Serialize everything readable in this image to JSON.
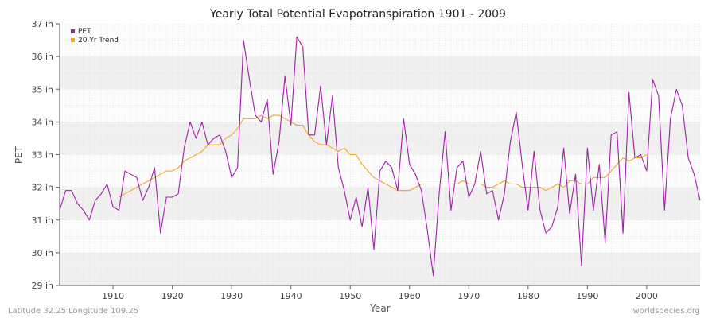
{
  "chart_data": {
    "type": "line",
    "title": "Yearly Total Potential Evapotranspiration 1901 - 2009",
    "xlabel": "Year",
    "ylabel": "PET",
    "xlim": [
      1901,
      2009
    ],
    "ylim": [
      29,
      37
    ],
    "y_unit": "in",
    "x_ticks": [
      1910,
      1920,
      1930,
      1940,
      1950,
      1960,
      1970,
      1980,
      1990,
      2000
    ],
    "y_ticks": [
      29,
      30,
      31,
      32,
      33,
      34,
      35,
      36,
      37
    ],
    "y_tick_labels": [
      "29 in",
      "30 in",
      "31 in",
      "32 in",
      "33 in",
      "34 in",
      "35 in",
      "36 in",
      "37 in"
    ],
    "grid": true,
    "legend_position": "top-left",
    "series": [
      {
        "name": "PET",
        "color": "#a020a8",
        "x": [
          1901,
          1902,
          1903,
          1904,
          1905,
          1906,
          1907,
          1908,
          1909,
          1910,
          1911,
          1912,
          1913,
          1914,
          1915,
          1916,
          1917,
          1918,
          1919,
          1920,
          1921,
          1922,
          1923,
          1924,
          1925,
          1926,
          1927,
          1928,
          1929,
          1930,
          1931,
          1932,
          1933,
          1934,
          1935,
          1936,
          1937,
          1938,
          1939,
          1940,
          1941,
          1942,
          1943,
          1944,
          1945,
          1946,
          1947,
          1948,
          1949,
          1950,
          1951,
          1952,
          1953,
          1954,
          1955,
          1956,
          1957,
          1958,
          1959,
          1960,
          1961,
          1962,
          1963,
          1964,
          1965,
          1966,
          1967,
          1968,
          1969,
          1970,
          1971,
          1972,
          1973,
          1974,
          1975,
          1976,
          1977,
          1978,
          1979,
          1980,
          1981,
          1982,
          1983,
          1984,
          1985,
          1986,
          1987,
          1988,
          1989,
          1990,
          1991,
          1992,
          1993,
          1994,
          1995,
          1996,
          1997,
          1998,
          1999,
          2000,
          2001,
          2002,
          2003,
          2004,
          2005,
          2006,
          2007,
          2008,
          2009
        ],
        "values": [
          31.3,
          31.9,
          31.9,
          31.5,
          31.3,
          31.0,
          31.6,
          31.8,
          32.1,
          31.4,
          31.3,
          32.5,
          32.4,
          32.3,
          31.6,
          32.0,
          32.6,
          30.6,
          31.7,
          31.7,
          31.8,
          33.2,
          34.0,
          33.5,
          34.0,
          33.3,
          33.5,
          33.6,
          33.1,
          32.3,
          32.6,
          36.5,
          35.3,
          34.2,
          34.0,
          34.7,
          32.4,
          33.4,
          35.4,
          33.9,
          36.6,
          36.3,
          33.6,
          33.6,
          35.1,
          33.3,
          34.8,
          32.6,
          31.9,
          31.0,
          31.7,
          30.8,
          32.0,
          30.1,
          32.5,
          32.8,
          32.6,
          31.9,
          34.1,
          32.7,
          32.4,
          31.9,
          30.7,
          29.3,
          31.8,
          33.7,
          31.3,
          32.6,
          32.8,
          31.7,
          32.1,
          33.1,
          31.8,
          31.9,
          31.0,
          31.8,
          33.4,
          34.3,
          32.7,
          31.3,
          33.1,
          31.3,
          30.6,
          30.8,
          31.4,
          33.2,
          31.2,
          32.4,
          29.6,
          33.2,
          31.3,
          32.7,
          30.3,
          33.6,
          33.7,
          30.6,
          34.9,
          32.9,
          33.0,
          32.5,
          35.3,
          34.8,
          31.3,
          34.1,
          35.0,
          34.5,
          32.9,
          32.4,
          31.6
        ]
      },
      {
        "name": "20 Yr Trend",
        "color": "#f5a623",
        "x": [
          1911,
          1912,
          1913,
          1914,
          1915,
          1916,
          1917,
          1918,
          1919,
          1920,
          1921,
          1922,
          1923,
          1924,
          1925,
          1926,
          1927,
          1928,
          1929,
          1930,
          1931,
          1932,
          1933,
          1934,
          1935,
          1936,
          1937,
          1938,
          1939,
          1940,
          1941,
          1942,
          1943,
          1944,
          1945,
          1946,
          1947,
          1948,
          1949,
          1950,
          1951,
          1952,
          1953,
          1954,
          1955,
          1956,
          1957,
          1958,
          1959,
          1960,
          1961,
          1962,
          1963,
          1964,
          1965,
          1966,
          1967,
          1968,
          1969,
          1970,
          1971,
          1972,
          1973,
          1974,
          1975,
          1976,
          1977,
          1978,
          1979,
          1980,
          1981,
          1982,
          1983,
          1984,
          1985,
          1986,
          1987,
          1988,
          1989,
          1990,
          1991,
          1992,
          1993,
          1994,
          1995,
          1996,
          1997,
          1998,
          1999,
          2000
        ],
        "values": [
          31.7,
          31.8,
          31.9,
          32.0,
          32.1,
          32.2,
          32.3,
          32.4,
          32.5,
          32.5,
          32.6,
          32.8,
          32.9,
          33.0,
          33.1,
          33.3,
          33.3,
          33.3,
          33.5,
          33.6,
          33.8,
          34.1,
          34.1,
          34.1,
          34.2,
          34.1,
          34.2,
          34.2,
          34.1,
          34.0,
          33.9,
          33.9,
          33.6,
          33.4,
          33.3,
          33.3,
          33.2,
          33.1,
          33.2,
          33.0,
          33.0,
          32.7,
          32.5,
          32.3,
          32.2,
          32.1,
          32.0,
          31.9,
          31.9,
          31.9,
          32.0,
          32.1,
          32.1,
          32.1,
          32.1,
          32.1,
          32.1,
          32.1,
          32.2,
          32.1,
          32.1,
          32.1,
          32.0,
          32.0,
          32.1,
          32.2,
          32.1,
          32.1,
          32.0,
          32.0,
          32.0,
          32.0,
          31.9,
          32.0,
          32.1,
          32.0,
          32.2,
          32.2,
          32.1,
          32.1,
          32.3,
          32.3,
          32.3,
          32.5,
          32.7,
          32.9,
          32.8,
          32.9,
          32.9,
          33.0
        ]
      }
    ],
    "footer_left": "Latitude 32.25 Longitude 109.25",
    "footer_right": "worldspecies.org"
  }
}
